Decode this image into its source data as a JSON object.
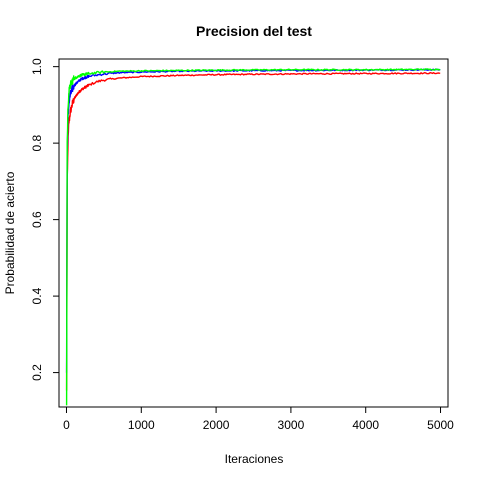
{
  "chart_data": {
    "type": "line",
    "title": "Precision del test",
    "xlabel": "Iteraciones",
    "ylabel": "Probabilidad de acierto",
    "xlim": [
      -100,
      5100
    ],
    "ylim": [
      0.11,
      1.02
    ],
    "xticks": [
      0,
      1000,
      2000,
      3000,
      4000,
      5000
    ],
    "xtick_labels": [
      "0",
      "1000",
      "2000",
      "3000",
      "4000",
      "5000"
    ],
    "yticks": [
      0.2,
      0.4,
      0.6,
      0.8,
      1.0
    ],
    "ytick_labels": [
      "0.2",
      "0.4",
      "0.6",
      "0.8",
      "1.0"
    ],
    "grid": false,
    "series": [
      {
        "color": "#ff0000",
        "x": [
          1,
          10,
          20,
          30,
          50,
          75,
          100,
          150,
          200,
          300,
          400,
          500,
          700,
          1000,
          1500,
          2000,
          3000,
          4000,
          5000
        ],
        "values": [
          0.15,
          0.7,
          0.8,
          0.85,
          0.88,
          0.9,
          0.915,
          0.93,
          0.94,
          0.952,
          0.96,
          0.965,
          0.97,
          0.974,
          0.977,
          0.979,
          0.981,
          0.982,
          0.983
        ]
      },
      {
        "color": "#0000ff",
        "x": [
          1,
          10,
          20,
          30,
          50,
          75,
          100,
          150,
          200,
          300,
          400,
          500,
          700,
          1000,
          1500,
          2000,
          3000,
          4000,
          5000
        ],
        "values": [
          0.2,
          0.78,
          0.86,
          0.9,
          0.925,
          0.94,
          0.95,
          0.96,
          0.968,
          0.975,
          0.978,
          0.981,
          0.984,
          0.986,
          0.988,
          0.989,
          0.99,
          0.991,
          0.992
        ]
      },
      {
        "color": "#00ff00",
        "x": [
          1,
          10,
          20,
          30,
          50,
          75,
          100,
          150,
          200,
          300,
          400,
          500,
          700,
          1000,
          1500,
          2000,
          3000,
          4000,
          5000
        ],
        "values": [
          0.12,
          0.8,
          0.89,
          0.93,
          0.95,
          0.962,
          0.968,
          0.974,
          0.978,
          0.982,
          0.984,
          0.986,
          0.988,
          0.989,
          0.99,
          0.991,
          0.992,
          0.992,
          0.993
        ]
      }
    ]
  }
}
